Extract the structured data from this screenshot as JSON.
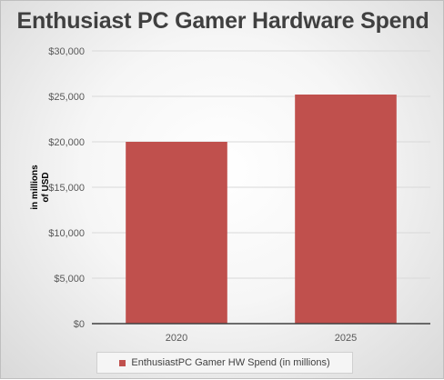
{
  "chart_data": {
    "type": "bar",
    "title": "Enthusiast PC Gamer Hardware Spend",
    "ylabel_lines": [
      "in millions",
      "of USD"
    ],
    "categories": [
      "2020",
      "2025"
    ],
    "series": [
      {
        "name": "EnthusiastPC Gamer HW Spend (in millions)",
        "values": [
          20000,
          25200
        ],
        "color": "#c0504d"
      }
    ],
    "ylim": [
      0,
      30000
    ],
    "yticks": [
      "$0",
      "$5,000",
      "$10,000",
      "$15,000",
      "$20,000",
      "$25,000",
      "$30,000"
    ],
    "ytick_values": [
      0,
      5000,
      10000,
      15000,
      20000,
      25000,
      30000
    ],
    "grid": true,
    "legend_position": "bottom"
  }
}
